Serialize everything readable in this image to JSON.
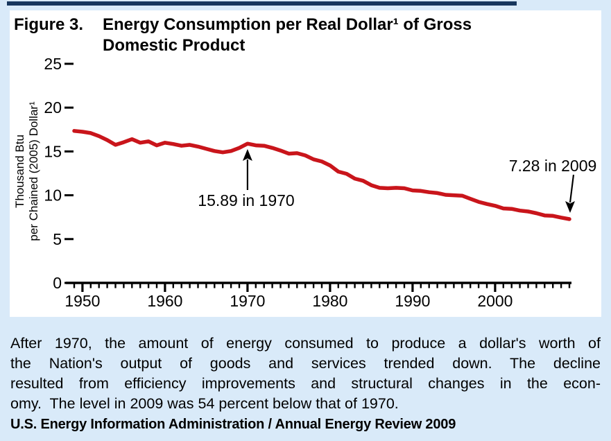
{
  "title": {
    "figure_label": "Figure 3.",
    "line1": "Energy Consumption per Real Dollar¹ of Gross",
    "line2": "Domestic Product"
  },
  "chart_data": {
    "type": "line",
    "title": "Figure 3. Energy Consumption per Real Dollar¹ of Gross Domestic Product",
    "xlabel": "",
    "ylabel": "Thousand Btu per Chained (2005) Dollar¹",
    "ylabel_line1": "Thousand Btu",
    "ylabel_line2": "per Chained (2005) Dollar¹",
    "x_range": [
      1949,
      2009
    ],
    "ylim": [
      0,
      25
    ],
    "y_ticks": [
      0,
      5,
      10,
      15,
      20,
      25
    ],
    "x_ticks": [
      1950,
      1960,
      1970,
      1980,
      1990,
      2000
    ],
    "grid": false,
    "legend": "none",
    "line_color": "#c9151b",
    "years": [
      1949,
      1950,
      1951,
      1952,
      1953,
      1954,
      1955,
      1956,
      1957,
      1958,
      1959,
      1960,
      1961,
      1962,
      1963,
      1964,
      1965,
      1966,
      1967,
      1968,
      1969,
      1970,
      1971,
      1972,
      1973,
      1974,
      1975,
      1976,
      1977,
      1978,
      1979,
      1980,
      1981,
      1982,
      1983,
      1984,
      1985,
      1986,
      1987,
      1988,
      1989,
      1990,
      1991,
      1992,
      1993,
      1994,
      1995,
      1996,
      1997,
      1998,
      1999,
      2000,
      2001,
      2002,
      2003,
      2004,
      2005,
      2006,
      2007,
      2008,
      2009
    ],
    "values": [
      17.34,
      17.25,
      17.1,
      16.75,
      16.3,
      15.75,
      16.05,
      16.4,
      16.0,
      16.15,
      15.7,
      16.0,
      15.85,
      15.65,
      15.75,
      15.55,
      15.3,
      15.05,
      14.9,
      15.05,
      15.4,
      15.89,
      15.7,
      15.65,
      15.4,
      15.1,
      14.75,
      14.8,
      14.55,
      14.1,
      13.85,
      13.4,
      12.7,
      12.45,
      11.9,
      11.65,
      11.15,
      10.85,
      10.8,
      10.85,
      10.8,
      10.55,
      10.5,
      10.35,
      10.25,
      10.05,
      10.0,
      9.95,
      9.6,
      9.25,
      9.0,
      8.8,
      8.5,
      8.45,
      8.25,
      8.15,
      7.95,
      7.7,
      7.65,
      7.45,
      7.28
    ],
    "annotations": [
      {
        "text": "15.89 in 1970",
        "year": 1970,
        "value": 15.89
      },
      {
        "text": "7.28 in 2009",
        "year": 2009,
        "value": 7.28
      }
    ]
  },
  "caption": {
    "lines": [
      "After 1970, the amount of energy consumed to produce a dollar's worth of",
      "the Nation's output of goods and services trended down. The decline",
      "resulted from efficiency improvements and structural changes in the econ-",
      "omy.  The level in 2009 was 54 percent below that of 1970."
    ]
  },
  "source": "U.S. Energy Information Administration / Annual Energy Review 2009",
  "colors": {
    "page_bg": "#d9eaf9",
    "panel_bg": "#ffffff",
    "rule": "#17365d",
    "line": "#c9151b",
    "text": "#000000"
  }
}
